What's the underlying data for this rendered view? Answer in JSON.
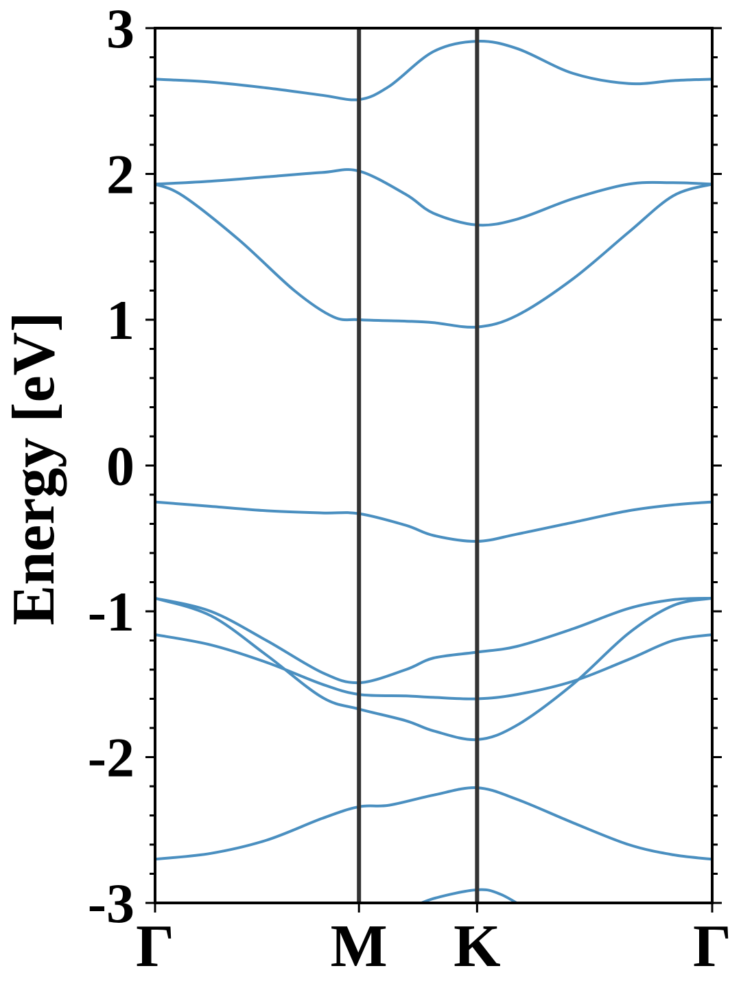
{
  "chart_data": {
    "type": "line",
    "title": "",
    "ylabel": "Energy [eV]",
    "xlabel": "",
    "ylim": [
      -3,
      3
    ],
    "yticks": [
      "3",
      "2",
      "1",
      "0",
      "-1",
      "-2",
      "-3"
    ],
    "yticks_values": [
      3,
      2,
      1,
      0,
      -1,
      -2,
      -3
    ],
    "y_minor_step": 0.2,
    "grid": false,
    "legend": "none",
    "high_symmetry_points": [
      {
        "label": "Γ",
        "x": 0
      },
      {
        "label": "M",
        "x": 0.366
      },
      {
        "label": "K",
        "x": 0.578
      },
      {
        "label": "Γ",
        "x": 1
      }
    ],
    "line_color": "#4a8fc0",
    "divider_color": "#333333",
    "bands": [
      {
        "x": [
          0,
          0.1,
          0.2,
          0.3,
          0.366,
          0.42,
          0.5,
          0.578,
          0.65,
          0.75,
          0.85,
          0.93,
          1
        ],
        "y": [
          -2.7,
          -2.66,
          -2.57,
          -2.42,
          -2.34,
          -2.33,
          -2.26,
          -2.21,
          -2.29,
          -2.45,
          -2.6,
          -2.67,
          -2.7
        ]
      },
      {
        "x": [
          0,
          0.1,
          0.2,
          0.3,
          0.366,
          0.45,
          0.5,
          0.578,
          0.65,
          0.75,
          0.85,
          0.93,
          1
        ],
        "y": [
          -1.16,
          -1.23,
          -1.35,
          -1.5,
          -1.57,
          -1.58,
          -1.59,
          -1.6,
          -1.57,
          -1.48,
          -1.33,
          -1.2,
          -1.16
        ]
      },
      {
        "x": [
          0,
          0.1,
          0.2,
          0.3,
          0.366,
          0.45,
          0.5,
          0.578,
          0.65,
          0.75,
          0.85,
          0.93,
          1
        ],
        "y": [
          -0.91,
          -1.03,
          -1.3,
          -1.59,
          -1.67,
          -1.75,
          -1.82,
          -1.88,
          -1.78,
          -1.5,
          -1.15,
          -0.96,
          -0.91
        ]
      },
      {
        "x": [
          0,
          0.1,
          0.2,
          0.3,
          0.366,
          0.45,
          0.5,
          0.578,
          0.65,
          0.75,
          0.85,
          0.93,
          1
        ],
        "y": [
          -0.91,
          -1.0,
          -1.2,
          -1.42,
          -1.49,
          -1.4,
          -1.32,
          -1.28,
          -1.24,
          -1.12,
          -0.98,
          -0.92,
          -0.91
        ]
      },
      {
        "x": [
          0,
          0.1,
          0.2,
          0.3,
          0.366,
          0.45,
          0.5,
          0.578,
          0.65,
          0.75,
          0.85,
          0.93,
          1
        ],
        "y": [
          -0.25,
          -0.28,
          -0.31,
          -0.325,
          -0.33,
          -0.41,
          -0.48,
          -0.52,
          -0.47,
          -0.39,
          -0.31,
          -0.27,
          -0.25
        ]
      },
      {
        "x": [
          0,
          0.05,
          0.15,
          0.25,
          0.32,
          0.366,
          0.45,
          0.5,
          0.578,
          0.65,
          0.75,
          0.85,
          0.93,
          1
        ],
        "y": [
          1.93,
          1.85,
          1.55,
          1.2,
          1.02,
          1.0,
          0.99,
          0.98,
          0.95,
          1.03,
          1.28,
          1.6,
          1.85,
          1.93
        ]
      },
      {
        "x": [
          0,
          0.1,
          0.2,
          0.3,
          0.366,
          0.45,
          0.5,
          0.578,
          0.65,
          0.75,
          0.85,
          0.93,
          1
        ],
        "y": [
          1.93,
          1.95,
          1.98,
          2.01,
          2.02,
          1.86,
          1.73,
          1.65,
          1.69,
          1.83,
          1.93,
          1.94,
          1.93
        ]
      },
      {
        "x": [
          0,
          0.1,
          0.2,
          0.3,
          0.366,
          0.42,
          0.5,
          0.578,
          0.65,
          0.75,
          0.85,
          0.93,
          1
        ],
        "y": [
          2.65,
          2.63,
          2.59,
          2.54,
          2.51,
          2.6,
          2.84,
          2.91,
          2.86,
          2.69,
          2.62,
          2.64,
          2.65
        ]
      },
      {
        "x": [
          0.45,
          0.5,
          0.578,
          0.62,
          0.67
        ],
        "y": [
          -3.05,
          -2.97,
          -2.91,
          -2.94,
          -3.05
        ]
      }
    ]
  }
}
